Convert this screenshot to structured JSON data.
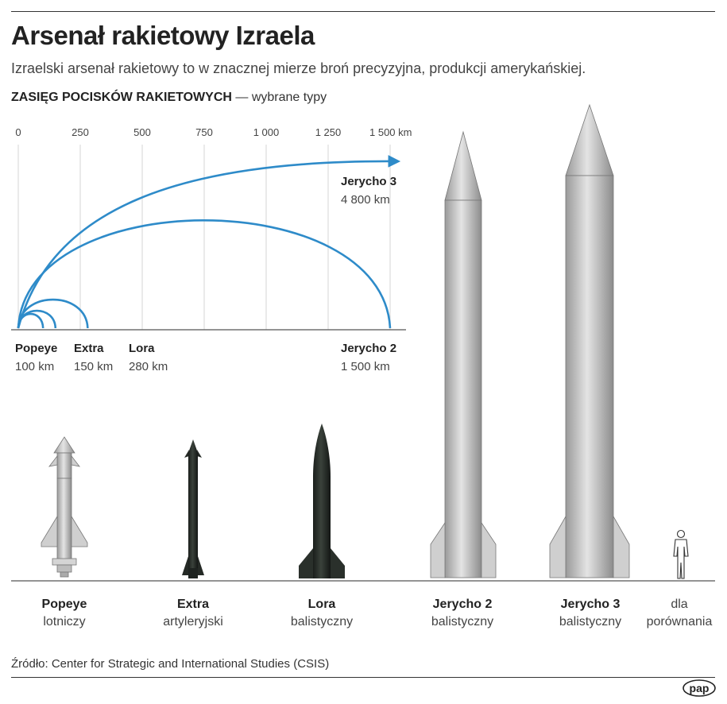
{
  "title": "Arsenał rakietowy Izraela",
  "subtitle": "Izraelski arsenał rakietowy to w znacznej mierze broń precyzyjna, produkcji amerykańskiej.",
  "section": {
    "label": "ZASIĘG POCISKÓW RAKIETOWYCH",
    "note": "— wybrane typy"
  },
  "scale": {
    "ticks": [
      "0",
      "250",
      "500",
      "750",
      "1 000",
      "1 250",
      "1 500 km"
    ],
    "max_km": 1500
  },
  "ranges": [
    {
      "name": "Popeye",
      "value": "100 km",
      "km": 100
    },
    {
      "name": "Extra",
      "value": "150 km",
      "km": 150
    },
    {
      "name": "Lora",
      "value": "280 km",
      "km": 280
    },
    {
      "name": "Jerycho 2",
      "value": "1 500 km",
      "km": 1500
    },
    {
      "name": "Jerycho 3",
      "value": "4 800 km",
      "km": 4800
    }
  ],
  "missiles": [
    {
      "name": "Popeye",
      "type": "lotniczy"
    },
    {
      "name": "Extra",
      "type": "artyleryjski"
    },
    {
      "name": "Lora",
      "type": "balistyczny"
    },
    {
      "name": "Jerycho 2",
      "type": "balistyczny"
    },
    {
      "name": "Jerycho 3",
      "type": "balistyczny"
    }
  ],
  "comparison": {
    "line1": "dla",
    "line2": "porównania"
  },
  "source": "Źródło: Center for Strategic and International Studies (CSIS)",
  "logo": "pap",
  "colors": {
    "arc": "#2e8bc9",
    "missile_light": "#c8c8c8",
    "missile_dark": "#2a302b",
    "text": "#333333"
  }
}
